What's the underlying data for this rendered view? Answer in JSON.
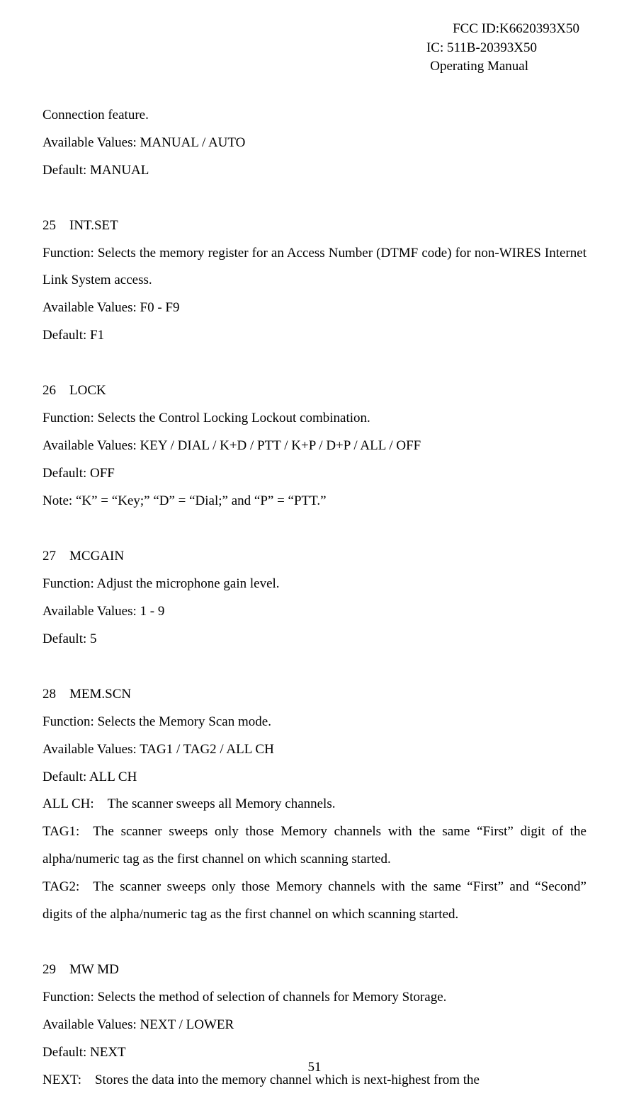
{
  "header": {
    "fcc_id": "FCC ID:K6620393X50",
    "ic": "IC: 511B-20393X50",
    "doc_type": "Operating Manual"
  },
  "intro": {
    "line1": "Connection feature.",
    "line2": "Available Values: MANUAL / AUTO",
    "line3": "Default: MANUAL"
  },
  "section25": {
    "title": "25 INT.SET",
    "function": "Function: Selects the memory register for an Access Number (DTMF code) for non-WIRES Internet Link System access.",
    "values": "Available Values: F0 - F9",
    "default": "Default: F1"
  },
  "section26": {
    "title": "26 LOCK",
    "function": "Function: Selects the Control Locking Lockout combination.",
    "values": "Available Values: KEY / DIAL / K+D / PTT / K+P / D+P / ALL / OFF",
    "default": "Default: OFF",
    "note": "Note: “K” = “Key;” “D” = “Dial;” and “P” = “PTT.”"
  },
  "section27": {
    "title": "27 MCGAIN",
    "function": "Function: Adjust the microphone gain level.",
    "values": "Available Values: 1 - 9",
    "default": "Default: 5"
  },
  "section28": {
    "title": "28 MEM.SCN",
    "function": "Function: Selects the Memory Scan mode.",
    "values": "Available Values: TAG1 / TAG2 / ALL CH",
    "default": "Default: ALL CH",
    "allch": "ALL CH: The scanner sweeps all Memory channels.",
    "tag1": "TAG1: The scanner sweeps only those Memory channels with the same “First” digit of the alpha/numeric tag as the first channel on which scanning started.",
    "tag2": "TAG2: The scanner sweeps only those Memory channels with the same “First” and “Second” digits of the alpha/numeric tag as the first channel on which scanning started."
  },
  "section29": {
    "title": "29 MW MD",
    "function": "Function: Selects the method of selection of channels for Memory Storage.",
    "values": "Available Values: NEXT / LOWER",
    "default": "Default: NEXT",
    "next": "NEXT: Stores the data into the memory channel which is next-highest from the"
  },
  "page_number": "51"
}
